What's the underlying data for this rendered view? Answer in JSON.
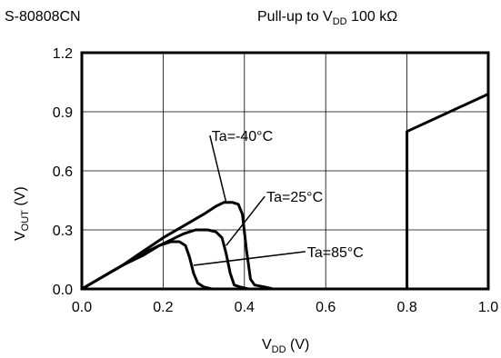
{
  "header": {
    "part_number": "S-80808CN",
    "condition_prefix": "Pull-up to V",
    "condition_sub": "DD",
    "condition_suffix": " 100 kΩ"
  },
  "chart_data": {
    "type": "line",
    "xlabel": {
      "main": "V",
      "sub": "DD",
      "unit": " (V)"
    },
    "ylabel": {
      "main": "V",
      "sub": "OUT",
      "unit": " (V)"
    },
    "xlim": [
      0.0,
      1.0
    ],
    "ylim": [
      0.0,
      1.2
    ],
    "xticks": [
      "0.0",
      "0.2",
      "0.4",
      "0.6",
      "0.8",
      "1.0"
    ],
    "yticks": [
      "0.0",
      "0.3",
      "0.6",
      "0.9",
      "1.2"
    ],
    "grid": true,
    "series": [
      {
        "name": "Ta=-40°C",
        "color": "#000000",
        "points": [
          [
            0.0,
            0.0
          ],
          [
            0.05,
            0.06
          ],
          [
            0.1,
            0.12
          ],
          [
            0.15,
            0.19
          ],
          [
            0.2,
            0.26
          ],
          [
            0.25,
            0.32
          ],
          [
            0.3,
            0.38
          ],
          [
            0.33,
            0.42
          ],
          [
            0.35,
            0.44
          ],
          [
            0.37,
            0.44
          ],
          [
            0.385,
            0.43
          ],
          [
            0.395,
            0.38
          ],
          [
            0.405,
            0.2
          ],
          [
            0.415,
            0.05
          ],
          [
            0.425,
            0.02
          ],
          [
            0.45,
            0.01
          ],
          [
            0.47,
            0.0
          ]
        ]
      },
      {
        "name": "Ta=25°C",
        "color": "#000000",
        "points": [
          [
            0.0,
            0.0
          ],
          [
            0.05,
            0.06
          ],
          [
            0.1,
            0.12
          ],
          [
            0.15,
            0.18
          ],
          [
            0.2,
            0.23
          ],
          [
            0.25,
            0.28
          ],
          [
            0.28,
            0.3
          ],
          [
            0.31,
            0.3
          ],
          [
            0.33,
            0.29
          ],
          [
            0.345,
            0.26
          ],
          [
            0.355,
            0.18
          ],
          [
            0.365,
            0.08
          ],
          [
            0.375,
            0.02
          ],
          [
            0.39,
            0.01
          ],
          [
            0.41,
            0.0
          ]
        ]
      },
      {
        "name": "Ta=85°C",
        "color": "#000000",
        "points": [
          [
            0.0,
            0.0
          ],
          [
            0.05,
            0.06
          ],
          [
            0.1,
            0.12
          ],
          [
            0.15,
            0.17
          ],
          [
            0.19,
            0.22
          ],
          [
            0.22,
            0.24
          ],
          [
            0.24,
            0.24
          ],
          [
            0.255,
            0.22
          ],
          [
            0.265,
            0.16
          ],
          [
            0.275,
            0.08
          ],
          [
            0.285,
            0.03
          ],
          [
            0.3,
            0.01
          ],
          [
            0.32,
            0.0
          ]
        ]
      },
      {
        "name": "",
        "color": "#000000",
        "points": [
          [
            0.8,
            0.0
          ],
          [
            0.8,
            0.8
          ],
          [
            1.0,
            0.99
          ]
        ]
      }
    ],
    "annotations": [
      {
        "text": "Ta=-40°C",
        "point": [
          0.355,
          0.44
        ],
        "label_at": [
          0.315,
          0.78
        ]
      },
      {
        "text": "Ta=25°C",
        "point": [
          0.355,
          0.22
        ],
        "label_at": [
          0.45,
          0.47
        ]
      },
      {
        "text": "Ta=85°C",
        "point": [
          0.275,
          0.12
        ],
        "label_at": [
          0.55,
          0.19
        ]
      }
    ]
  }
}
